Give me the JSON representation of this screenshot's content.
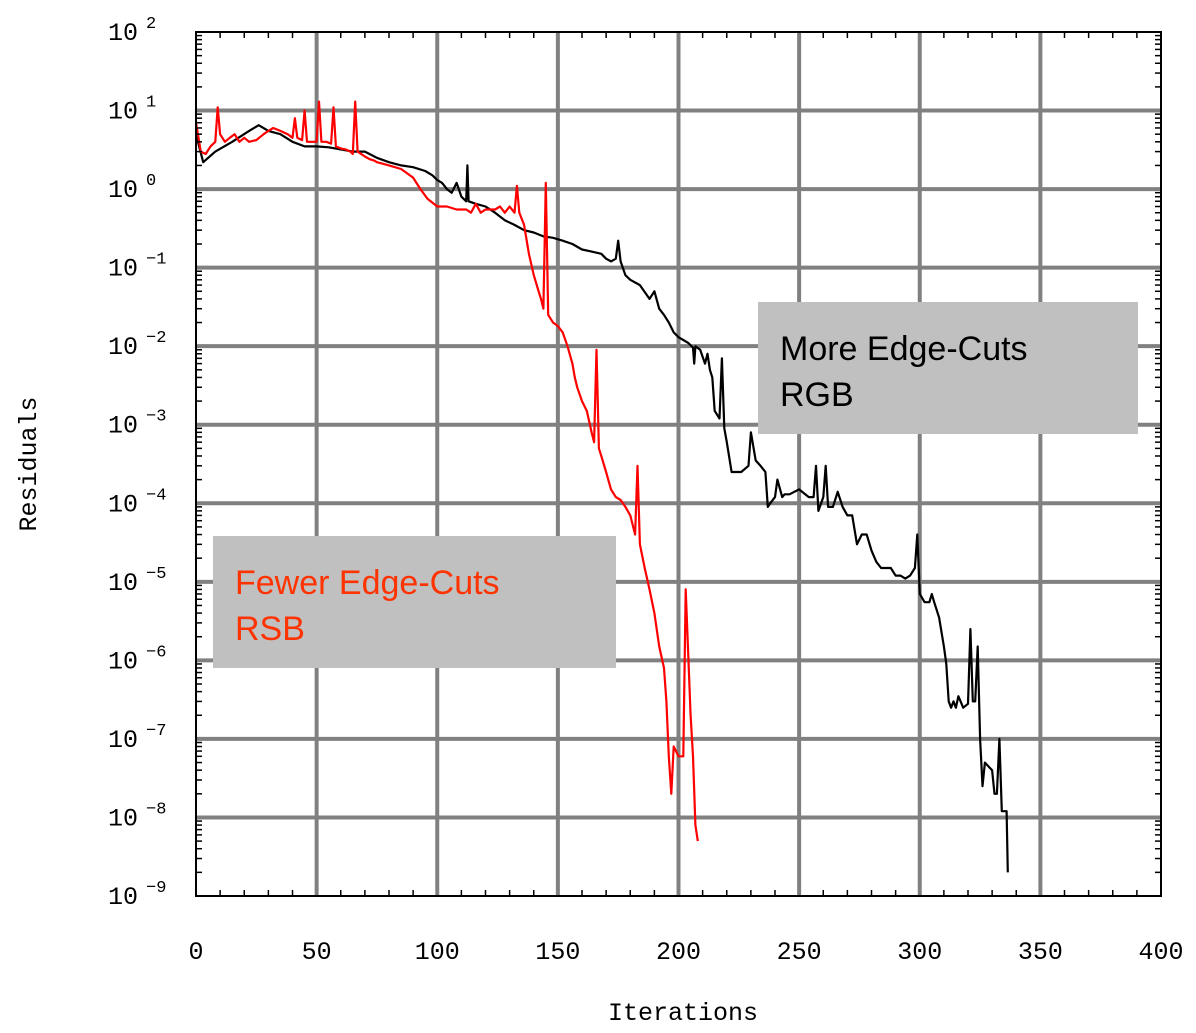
{
  "chart_data": {
    "type": "line",
    "title": "",
    "xlabel": "Iterations",
    "ylabel": "Residuals",
    "xlim": [
      0,
      400
    ],
    "ylim_log10": [
      -9,
      2
    ],
    "yscale": "log",
    "grid": true,
    "x_ticks": [
      "0",
      "50",
      "100",
      "150",
      "200",
      "250",
      "300",
      "350",
      "400"
    ],
    "y_tick_base": "10",
    "y_tick_exponents": [
      "2",
      "1",
      "0",
      "−1",
      "−2",
      "−3",
      "−4",
      "−5",
      "−6",
      "−7",
      "−8",
      "−9"
    ],
    "annotations": [
      {
        "lines": [
          "More Edge-Cuts",
          "RGB"
        ],
        "text_color": "#000000",
        "box_color": "#c0c0c0"
      },
      {
        "lines": [
          "Fewer Edge-Cuts",
          "RSB"
        ],
        "text_color": "#ff3300",
        "box_color": "#c0c0c0"
      }
    ],
    "series": [
      {
        "color": "#000000",
        "points": [
          [
            0,
            5
          ],
          [
            3,
            2.2
          ],
          [
            8,
            3
          ],
          [
            15,
            4
          ],
          [
            22,
            5.5
          ],
          [
            26,
            6.5
          ],
          [
            30,
            5.5
          ],
          [
            35,
            5
          ],
          [
            40,
            4
          ],
          [
            45,
            3.5
          ],
          [
            50,
            3.5
          ],
          [
            55,
            3.4
          ],
          [
            60,
            3.2
          ],
          [
            65,
            3.0
          ],
          [
            70,
            3.0
          ],
          [
            75,
            2.5
          ],
          [
            80,
            2.2
          ],
          [
            85,
            2.0
          ],
          [
            90,
            1.9
          ],
          [
            95,
            1.7
          ],
          [
            98,
            1.5
          ],
          [
            100,
            1.3
          ],
          [
            102,
            1.2
          ],
          [
            104,
            1.0
          ],
          [
            106,
            0.9
          ],
          [
            108,
            1.2
          ],
          [
            110,
            0.8
          ],
          [
            112,
            0.7
          ],
          [
            112.5,
            2.0
          ],
          [
            113,
            0.7
          ],
          [
            116,
            0.65
          ],
          [
            120,
            0.6
          ],
          [
            124,
            0.5
          ],
          [
            128,
            0.4
          ],
          [
            132,
            0.35
          ],
          [
            136,
            0.3
          ],
          [
            140,
            0.28
          ],
          [
            144,
            0.25
          ],
          [
            148,
            0.24
          ],
          [
            152,
            0.22
          ],
          [
            156,
            0.2
          ],
          [
            160,
            0.17
          ],
          [
            164,
            0.16
          ],
          [
            168,
            0.15
          ],
          [
            170,
            0.13
          ],
          [
            172,
            0.12
          ],
          [
            174,
            0.13
          ],
          [
            175,
            0.22
          ],
          [
            176,
            0.12
          ],
          [
            178,
            0.08
          ],
          [
            180,
            0.07
          ],
          [
            184,
            0.06
          ],
          [
            188,
            0.04
          ],
          [
            190,
            0.05
          ],
          [
            192,
            0.03
          ],
          [
            194,
            0.025
          ],
          [
            196,
            0.02
          ],
          [
            198,
            0.015
          ],
          [
            200,
            0.013
          ],
          [
            202,
            0.012
          ],
          [
            204,
            0.011
          ],
          [
            206,
            0.0096
          ],
          [
            206.5,
            0.006
          ],
          [
            207,
            0.01
          ],
          [
            209,
            0.009
          ],
          [
            211,
            0.006
          ],
          [
            212,
            0.008
          ],
          [
            213,
            0.005
          ],
          [
            214,
            0.004
          ],
          [
            215,
            0.0015
          ],
          [
            217,
            0.0012
          ],
          [
            218,
            0.007
          ],
          [
            219,
            0.0009
          ],
          [
            220,
            0.0006
          ],
          [
            222,
            0.00025
          ],
          [
            226,
            0.00025
          ],
          [
            229,
            0.0003
          ],
          [
            230,
            0.0008
          ],
          [
            232,
            0.00035
          ],
          [
            234,
            0.0003
          ],
          [
            236,
            0.00025
          ],
          [
            237,
            9e-05
          ],
          [
            238,
            0.0001
          ],
          [
            240,
            0.00012
          ],
          [
            241,
            0.0002
          ],
          [
            243,
            0.00012
          ],
          [
            244,
            0.00013
          ],
          [
            246,
            0.00013
          ],
          [
            250,
            0.00015
          ],
          [
            254,
            0.00012
          ],
          [
            256,
            0.00012
          ],
          [
            257,
            0.0003
          ],
          [
            258,
            8e-05
          ],
          [
            260,
            0.00012
          ],
          [
            261,
            0.0003
          ],
          [
            262,
            9e-05
          ],
          [
            264,
            9e-05
          ],
          [
            266,
            0.00014
          ],
          [
            268,
            9e-05
          ],
          [
            270,
            7e-05
          ],
          [
            272,
            7e-05
          ],
          [
            274,
            3e-05
          ],
          [
            276,
            4e-05
          ],
          [
            278,
            4e-05
          ],
          [
            280,
            2.5e-05
          ],
          [
            282,
            1.8e-05
          ],
          [
            284,
            1.5e-05
          ],
          [
            286,
            1.5e-05
          ],
          [
            288,
            1.5e-05
          ],
          [
            290,
            1.2e-05
          ],
          [
            292,
            1.2e-05
          ],
          [
            294,
            1.1e-05
          ],
          [
            296,
            1.2e-05
          ],
          [
            298,
            1.5e-05
          ],
          [
            299,
            4e-05
          ],
          [
            300,
            7e-06
          ],
          [
            302,
            5.5e-06
          ],
          [
            304,
            5.5e-06
          ],
          [
            305,
            7e-06
          ],
          [
            306,
            5.5e-06
          ],
          [
            308,
            3.5e-06
          ],
          [
            310,
            1.5e-06
          ],
          [
            311,
            9e-07
          ],
          [
            312,
            3e-07
          ],
          [
            313,
            2.5e-07
          ],
          [
            314,
            3e-07
          ],
          [
            315,
            2.5e-07
          ],
          [
            316,
            3.5e-07
          ],
          [
            318,
            2.5e-07
          ],
          [
            320,
            2.8e-07
          ],
          [
            321,
            2.5e-06
          ],
          [
            322,
            3e-07
          ],
          [
            323,
            3e-07
          ],
          [
            324,
            1.5e-06
          ],
          [
            325,
            1e-07
          ],
          [
            326,
            2.5e-08
          ],
          [
            327,
            5e-08
          ],
          [
            330,
            4e-08
          ],
          [
            331,
            2e-08
          ],
          [
            332,
            2e-08
          ],
          [
            333,
            1e-07
          ],
          [
            334,
            1.2e-08
          ],
          [
            336,
            1.2e-08
          ],
          [
            336.5,
            2e-09
          ]
        ]
      },
      {
        "color": "#ff0000",
        "points": [
          [
            0,
            7
          ],
          [
            2,
            3
          ],
          [
            4,
            2.8
          ],
          [
            6,
            3.5
          ],
          [
            8,
            4
          ],
          [
            9,
            11
          ],
          [
            10,
            5
          ],
          [
            12,
            4
          ],
          [
            14,
            4.5
          ],
          [
            16,
            5
          ],
          [
            18,
            4
          ],
          [
            20,
            4.5
          ],
          [
            22,
            4
          ],
          [
            25,
            4.2
          ],
          [
            28,
            5
          ],
          [
            30,
            5.5
          ],
          [
            32,
            6
          ],
          [
            35,
            5.5
          ],
          [
            38,
            5
          ],
          [
            40,
            4.5
          ],
          [
            41,
            8
          ],
          [
            42,
            4.5
          ],
          [
            44,
            4.2
          ],
          [
            45,
            10
          ],
          [
            46,
            4
          ],
          [
            48,
            4
          ],
          [
            50,
            4
          ],
          [
            51,
            13
          ],
          [
            52,
            4
          ],
          [
            54,
            4
          ],
          [
            56,
            3.8
          ],
          [
            57,
            11
          ],
          [
            58,
            3.5
          ],
          [
            60,
            3.3
          ],
          [
            62,
            3.2
          ],
          [
            64,
            3.0
          ],
          [
            65,
            2.8
          ],
          [
            66,
            13
          ],
          [
            67,
            3
          ],
          [
            70,
            2.6
          ],
          [
            72,
            2.4
          ],
          [
            74,
            2.3
          ],
          [
            75,
            2.2
          ],
          [
            80,
            2.0
          ],
          [
            85,
            1.8
          ],
          [
            90,
            1.4
          ],
          [
            93,
            1.0
          ],
          [
            96,
            0.75
          ],
          [
            100,
            0.6
          ],
          [
            104,
            0.6
          ],
          [
            108,
            0.55
          ],
          [
            112,
            0.55
          ],
          [
            114,
            0.5
          ],
          [
            116,
            0.65
          ],
          [
            118,
            0.5
          ],
          [
            120,
            0.55
          ],
          [
            124,
            0.55
          ],
          [
            126,
            0.6
          ],
          [
            128,
            0.5
          ],
          [
            130,
            0.6
          ],
          [
            132,
            0.5
          ],
          [
            133,
            1.1
          ],
          [
            134,
            0.5
          ],
          [
            136,
            0.35
          ],
          [
            138,
            0.15
          ],
          [
            140,
            0.08
          ],
          [
            142,
            0.05
          ],
          [
            143,
            0.04
          ],
          [
            144,
            0.03
          ],
          [
            145,
            1.2
          ],
          [
            146,
            0.025
          ],
          [
            148,
            0.02
          ],
          [
            150,
            0.018
          ],
          [
            152,
            0.015
          ],
          [
            154,
            0.01
          ],
          [
            156,
            0.006
          ],
          [
            157,
            0.004
          ],
          [
            158,
            0.003
          ],
          [
            160,
            0.002
          ],
          [
            162,
            0.0015
          ],
          [
            164,
            0.0008
          ],
          [
            165,
            0.0006
          ],
          [
            166,
            0.009
          ],
          [
            167,
            0.0005
          ],
          [
            168,
            0.0004
          ],
          [
            170,
            0.00025
          ],
          [
            172,
            0.00015
          ],
          [
            174,
            0.00012
          ],
          [
            176,
            0.00011
          ],
          [
            178,
            9e-05
          ],
          [
            180,
            7e-05
          ],
          [
            182,
            4e-05
          ],
          [
            183,
            0.0003
          ],
          [
            184,
            3e-05
          ],
          [
            186,
            1.5e-05
          ],
          [
            188,
            8e-06
          ],
          [
            190,
            4e-06
          ],
          [
            192,
            1.5e-06
          ],
          [
            194,
            8e-07
          ],
          [
            195,
            3e-07
          ],
          [
            196,
            6e-08
          ],
          [
            197,
            2e-08
          ],
          [
            198,
            8e-08
          ],
          [
            200,
            6e-08
          ],
          [
            202,
            6e-08
          ],
          [
            203,
            8e-06
          ],
          [
            205,
            2e-07
          ],
          [
            206,
            6e-08
          ],
          [
            207,
            8e-09
          ],
          [
            208,
            5e-09
          ]
        ]
      }
    ]
  }
}
